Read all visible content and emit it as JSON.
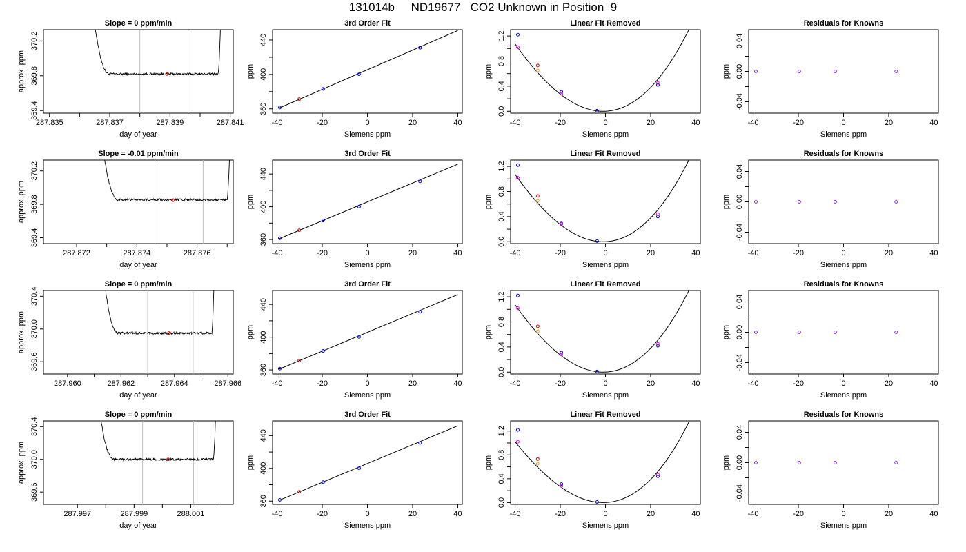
{
  "figure": {
    "title": "131014b     ND19677   CO2 Unknown in Position  9"
  },
  "colors": {
    "trace": "#000000",
    "vline": "#bebebe",
    "known": "#0000ff",
    "unknown": "#ff0000",
    "magenta": "#ff00ff",
    "orange": "#ffa500",
    "residual": "#8a2be2"
  },
  "chart_data": [
    {
      "type": "line",
      "title": "Slope =  0  ppm/min",
      "xlabel": "day of year",
      "ylabel": "approx. ppm",
      "xlim": [
        287.8348,
        287.8411
      ],
      "ylim": [
        369.37,
        370.33
      ],
      "xticks": [
        287.835,
        287.837,
        287.839,
        287.841
      ],
      "xtick_labels": [
        "287.835",
        "287.837",
        "287.839",
        "287.841"
      ],
      "xticks_minor": [
        287.836,
        287.838,
        287.84
      ],
      "yticks": [
        369.4,
        369.8,
        370.2
      ],
      "ytick_labels": [
        "369.4",
        "369.8",
        "370.2"
      ],
      "trace": {
        "x0": 287.8364,
        "x1": 287.8407,
        "steady_start": 287.837,
        "steady_end": 287.8406,
        "level": 369.82,
        "noise": 0.012
      },
      "vlines": [
        287.838,
        287.8396
      ],
      "marker": {
        "x": 287.8389,
        "y": 369.82
      }
    },
    {
      "type": "line",
      "title": "Slope =  -0.01  ppm/min",
      "xlabel": "day of year",
      "ylabel": "approx. ppm",
      "xlim": [
        287.8709,
        287.8772
      ],
      "ylim": [
        369.33,
        370.33
      ],
      "xticks": [
        287.872,
        287.874,
        287.876
      ],
      "xtick_labels": [
        "287.872",
        "287.874",
        "287.876"
      ],
      "xticks_minor": [
        287.873,
        287.875,
        287.877
      ],
      "yticks": [
        369.4,
        369.8,
        370.2
      ],
      "ytick_labels": [
        "369.4",
        "369.8",
        "370.2"
      ],
      "trace": {
        "x0": 287.8728,
        "x1": 287.8771,
        "steady_start": 287.8734,
        "steady_end": 287.877,
        "level": 369.855,
        "noise": 0.013
      },
      "vlines": [
        287.8746,
        287.8762
      ],
      "marker": {
        "x": 287.8752,
        "y": 369.85
      }
    },
    {
      "type": "line",
      "title": "Slope =  0  ppm/min",
      "xlabel": "day of year",
      "ylabel": "approx. ppm",
      "xlim": [
        287.9591,
        287.9662
      ],
      "ylim": [
        369.45,
        370.47
      ],
      "xticks": [
        287.96,
        287.962,
        287.964,
        287.966
      ],
      "xtick_labels": [
        "287.960",
        "287.962",
        "287.964",
        "287.966"
      ],
      "xticks_minor": [
        287.961,
        287.963,
        287.965
      ],
      "yticks": [
        369.6,
        370.0,
        370.4
      ],
      "ytick_labels": [
        "369.6",
        "370.0",
        "370.4"
      ],
      "trace": {
        "x0": 287.9613,
        "x1": 287.9655,
        "steady_start": 287.9619,
        "steady_end": 287.9654,
        "level": 369.95,
        "noise": 0.013
      },
      "vlines": [
        287.963,
        287.9647
      ],
      "marker": {
        "x": 287.9638,
        "y": 369.95
      }
    },
    {
      "type": "line",
      "title": "Slope =  0  ppm/min",
      "xlabel": "day of year",
      "ylabel": "approx. ppm",
      "xlim": [
        287.9958,
        288.0025
      ],
      "ylim": [
        369.45,
        370.47
      ],
      "xticks": [
        287.997,
        287.999,
        288.001
      ],
      "xtick_labels": [
        "287.997",
        "287.999",
        "288.001"
      ],
      "xticks_minor": [
        287.998,
        288.0,
        288.002
      ],
      "yticks": [
        369.6,
        370.0,
        370.4
      ],
      "ytick_labels": [
        "369.6",
        "370.0",
        "370.4"
      ],
      "trace": {
        "x0": 287.9977,
        "x1": 288.0019,
        "steady_start": 287.9983,
        "steady_end": 288.0018,
        "level": 370.0,
        "noise": 0.013
      },
      "vlines": [
        287.9993,
        288.0011
      ],
      "marker": {
        "x": 288.0002,
        "y": 370.0
      }
    },
    {
      "type": "scatter",
      "title": "3rd Order Fit",
      "xlabel": "Siemens ppm",
      "ylabel": "ppm",
      "xlim": [
        -42,
        42
      ],
      "ylim": [
        355,
        452
      ],
      "xticks": [
        -40,
        -20,
        0,
        20,
        40
      ],
      "xtick_labels": [
        "-40",
        "-20",
        "0",
        "20",
        "40"
      ],
      "yticks": [
        360,
        400,
        440
      ],
      "ytick_labels": [
        "360",
        "400",
        "440"
      ],
      "yticks_minor": [
        380,
        420
      ],
      "line": {
        "x": [
          -39,
          40
        ],
        "y": [
          361,
          451
        ]
      },
      "points": [
        {
          "x": -38.8,
          "y": 361.5,
          "c": "known"
        },
        {
          "x": -30.2,
          "y": 371.3,
          "c": "unknown"
        },
        {
          "x": -19.6,
          "y": 383.2,
          "c": "known"
        },
        {
          "x": -3.7,
          "y": 400.2,
          "c": "known"
        },
        {
          "x": 23.3,
          "y": 431.0,
          "c": "known"
        }
      ]
    },
    {
      "type": "scatter",
      "title": "3rd Order Fit",
      "xlabel": "Siemens ppm",
      "ylabel": "ppm",
      "xlim": [
        -42,
        42
      ],
      "ylim": [
        355,
        457
      ],
      "xticks": [
        -40,
        -20,
        0,
        20,
        40
      ],
      "xtick_labels": [
        "-40",
        "-20",
        "0",
        "20",
        "40"
      ],
      "yticks": [
        360,
        400,
        440
      ],
      "ytick_labels": [
        "360",
        "400",
        "440"
      ],
      "yticks_minor": [
        380,
        420
      ],
      "line": {
        "x": [
          -39,
          40
        ],
        "y": [
          361,
          452
        ]
      },
      "points": [
        {
          "x": -38.8,
          "y": 361.5,
          "c": "known"
        },
        {
          "x": -30.2,
          "y": 371.3,
          "c": "unknown"
        },
        {
          "x": -19.6,
          "y": 383.2,
          "c": "known"
        },
        {
          "x": -3.7,
          "y": 400.2,
          "c": "known"
        },
        {
          "x": 23.3,
          "y": 431.0,
          "c": "known"
        }
      ]
    },
    {
      "type": "scatter",
      "title": "3rd Order Fit",
      "xlabel": "Siemens ppm",
      "ylabel": "ppm",
      "xlim": [
        -42,
        42
      ],
      "ylim": [
        355,
        457
      ],
      "xticks": [
        -40,
        -20,
        0,
        20,
        40
      ],
      "xtick_labels": [
        "-40",
        "-20",
        "0",
        "20",
        "40"
      ],
      "yticks": [
        360,
        400,
        440
      ],
      "ytick_labels": [
        "360",
        "400",
        "440"
      ],
      "yticks_minor": [
        380,
        420
      ],
      "line": {
        "x": [
          -39,
          40
        ],
        "y": [
          361,
          452
        ]
      },
      "points": [
        {
          "x": -38.8,
          "y": 361.5,
          "c": "known"
        },
        {
          "x": -30.2,
          "y": 371.3,
          "c": "unknown"
        },
        {
          "x": -19.6,
          "y": 383.2,
          "c": "known"
        },
        {
          "x": -3.7,
          "y": 400.2,
          "c": "known"
        },
        {
          "x": 23.3,
          "y": 431.0,
          "c": "known"
        }
      ]
    },
    {
      "type": "scatter",
      "title": "3rd Order Fit",
      "xlabel": "Siemens ppm",
      "ylabel": "ppm",
      "xlim": [
        -42,
        42
      ],
      "ylim": [
        356,
        458
      ],
      "xticks": [
        -40,
        -20,
        0,
        20,
        40
      ],
      "xtick_labels": [
        "-40",
        "-20",
        "0",
        "20",
        "40"
      ],
      "yticks": [
        360,
        400,
        440
      ],
      "ytick_labels": [
        "360",
        "400",
        "440"
      ],
      "yticks_minor": [
        380,
        420
      ],
      "line": {
        "x": [
          -39,
          40
        ],
        "y": [
          361,
          452
        ]
      },
      "points": [
        {
          "x": -38.8,
          "y": 361.5,
          "c": "known"
        },
        {
          "x": -30.2,
          "y": 371.3,
          "c": "unknown"
        },
        {
          "x": -19.6,
          "y": 383.2,
          "c": "known"
        },
        {
          "x": -3.7,
          "y": 400.2,
          "c": "known"
        },
        {
          "x": 23.3,
          "y": 431.0,
          "c": "known"
        }
      ]
    },
    {
      "type": "scatter",
      "title": "Linear Fit Removed",
      "xlabel": "Siemens ppm",
      "ylabel": "ppm",
      "xlim": [
        -42,
        42
      ],
      "ylim": [
        -0.03,
        1.3
      ],
      "xticks": [
        -40,
        -20,
        0,
        20,
        40
      ],
      "xtick_labels": [
        "-40",
        "-20",
        "0",
        "20",
        "40"
      ],
      "yticks": [
        0,
        0.4,
        0.8,
        1.2
      ],
      "ytick_labels": [
        "0.0",
        "0.4",
        "0.8",
        "1.2"
      ],
      "yticks_minor": [
        0.2,
        0.6,
        1.0
      ],
      "curve": {
        "vertex": -1,
        "a": 0.000807,
        "b": 2.6e-06
      },
      "points": [
        {
          "x": -38.8,
          "y": 1.22,
          "c": "known"
        },
        {
          "x": -38.8,
          "y": 1.02,
          "c": "magenta"
        },
        {
          "x": -30.0,
          "y": 0.73,
          "c": "unknown"
        },
        {
          "x": -30.0,
          "y": 0.65,
          "c": "orange"
        },
        {
          "x": -19.5,
          "y": 0.31,
          "c": "known"
        },
        {
          "x": -19.5,
          "y": 0.28,
          "c": "magenta"
        },
        {
          "x": -3.7,
          "y": 0.01,
          "c": "known"
        },
        {
          "x": 23.2,
          "y": 0.42,
          "c": "known"
        },
        {
          "x": 23.2,
          "y": 0.45,
          "c": "magenta"
        }
      ]
    },
    {
      "type": "scatter",
      "title": "Linear Fit Removed",
      "xlabel": "Siemens ppm",
      "ylabel": "ppm",
      "xlim": [
        -42,
        42
      ],
      "ylim": [
        -0.03,
        1.3
      ],
      "xticks": [
        -40,
        -20,
        0,
        20,
        40
      ],
      "xtick_labels": [
        "-40",
        "-20",
        "0",
        "20",
        "40"
      ],
      "yticks": [
        0,
        0.4,
        0.8,
        1.2
      ],
      "ytick_labels": [
        "0.0",
        "0.4",
        "0.8",
        "1.2"
      ],
      "yticks_minor": [
        0.2,
        0.6,
        1.0
      ],
      "curve": {
        "vertex": -1,
        "a": 0.000807,
        "b": 2.6e-06
      },
      "points": [
        {
          "x": -38.8,
          "y": 1.22,
          "c": "known"
        },
        {
          "x": -38.8,
          "y": 1.02,
          "c": "magenta"
        },
        {
          "x": -30.0,
          "y": 0.73,
          "c": "unknown"
        },
        {
          "x": -30.0,
          "y": 0.65,
          "c": "orange"
        },
        {
          "x": -19.5,
          "y": 0.29,
          "c": "known"
        },
        {
          "x": -19.5,
          "y": 0.28,
          "c": "magenta"
        },
        {
          "x": -3.7,
          "y": 0.01,
          "c": "known"
        },
        {
          "x": 23.2,
          "y": 0.4,
          "c": "known"
        },
        {
          "x": 23.2,
          "y": 0.44,
          "c": "magenta"
        }
      ]
    },
    {
      "type": "scatter",
      "title": "Linear Fit Removed",
      "xlabel": "Siemens ppm",
      "ylabel": "ppm",
      "xlim": [
        -42,
        42
      ],
      "ylim": [
        -0.03,
        1.3
      ],
      "xticks": [
        -40,
        -20,
        0,
        20,
        40
      ],
      "xtick_labels": [
        "-40",
        "-20",
        "0",
        "20",
        "40"
      ],
      "yticks": [
        0,
        0.4,
        0.8,
        1.2
      ],
      "ytick_labels": [
        "0.0",
        "0.4",
        "0.8",
        "1.2"
      ],
      "yticks_minor": [
        0.2,
        0.6,
        1.0
      ],
      "curve": {
        "vertex": -1,
        "a": 0.000807,
        "b": 2.6e-06
      },
      "points": [
        {
          "x": -38.8,
          "y": 1.22,
          "c": "known"
        },
        {
          "x": -38.8,
          "y": 1.02,
          "c": "magenta"
        },
        {
          "x": -30.0,
          "y": 0.73,
          "c": "unknown"
        },
        {
          "x": -30.0,
          "y": 0.65,
          "c": "orange"
        },
        {
          "x": -19.5,
          "y": 0.31,
          "c": "known"
        },
        {
          "x": -19.5,
          "y": 0.28,
          "c": "magenta"
        },
        {
          "x": -3.7,
          "y": 0.01,
          "c": "known"
        },
        {
          "x": 23.2,
          "y": 0.42,
          "c": "known"
        },
        {
          "x": 23.2,
          "y": 0.45,
          "c": "magenta"
        }
      ]
    },
    {
      "type": "scatter",
      "title": "Linear Fit Removed",
      "xlabel": "Siemens ppm",
      "ylabel": "ppm",
      "xlim": [
        -42,
        42
      ],
      "ylim": [
        -0.03,
        1.37
      ],
      "xticks": [
        -40,
        -20,
        0,
        20,
        40
      ],
      "xtick_labels": [
        "-40",
        "-20",
        "0",
        "20",
        "40"
      ],
      "yticks": [
        0,
        0.4,
        0.8,
        1.2
      ],
      "ytick_labels": [
        "0.0",
        "0.4",
        "0.8",
        "1.2"
      ],
      "yticks_minor": [
        0.2,
        0.6,
        1.0
      ],
      "curve": {
        "vertex": -1,
        "a": 0.000807,
        "b": 3.5e-06
      },
      "points": [
        {
          "x": -38.8,
          "y": 1.22,
          "c": "known"
        },
        {
          "x": -38.8,
          "y": 1.02,
          "c": "magenta"
        },
        {
          "x": -30.0,
          "y": 0.73,
          "c": "unknown"
        },
        {
          "x": -30.0,
          "y": 0.65,
          "c": "orange"
        },
        {
          "x": -19.5,
          "y": 0.31,
          "c": "known"
        },
        {
          "x": -19.5,
          "y": 0.28,
          "c": "magenta"
        },
        {
          "x": -3.7,
          "y": 0.01,
          "c": "known"
        },
        {
          "x": 23.2,
          "y": 0.44,
          "c": "known"
        },
        {
          "x": 23.2,
          "y": 0.47,
          "c": "magenta"
        }
      ]
    },
    {
      "type": "scatter",
      "title": "Residuals for Knowns",
      "xlabel": "Siemens ppm",
      "ylabel": "ppm",
      "xlim": [
        -42,
        42
      ],
      "ylim": [
        -0.055,
        0.055
      ],
      "xticks": [
        -40,
        -20,
        0,
        20,
        40
      ],
      "xtick_labels": [
        "-40",
        "-20",
        "0",
        "20",
        "40"
      ],
      "yticks": [
        -0.04,
        0,
        0.04
      ],
      "ytick_labels": [
        "-0.04",
        "0.00",
        "0.04"
      ],
      "yticks_minor": [
        -0.02,
        0.02
      ],
      "points": [
        {
          "x": -38.8,
          "y": 0,
          "c": "residual"
        },
        {
          "x": -19.6,
          "y": 0,
          "c": "residual"
        },
        {
          "x": -3.7,
          "y": 0,
          "c": "residual"
        },
        {
          "x": 23.3,
          "y": 0,
          "c": "residual"
        }
      ]
    },
    {
      "type": "scatter",
      "title": "Residuals for Knowns",
      "xlabel": "Siemens ppm",
      "ylabel": "ppm",
      "xlim": [
        -42,
        42
      ],
      "ylim": [
        -0.055,
        0.055
      ],
      "xticks": [
        -40,
        -20,
        0,
        20,
        40
      ],
      "xtick_labels": [
        "-40",
        "-20",
        "0",
        "20",
        "40"
      ],
      "yticks": [
        -0.04,
        0,
        0.04
      ],
      "ytick_labels": [
        "-0.04",
        "0.00",
        "0.04"
      ],
      "yticks_minor": [
        -0.02,
        0.02
      ],
      "points": [
        {
          "x": -38.8,
          "y": 0,
          "c": "residual"
        },
        {
          "x": -19.6,
          "y": 0,
          "c": "residual"
        },
        {
          "x": -3.7,
          "y": 0,
          "c": "residual"
        },
        {
          "x": 23.3,
          "y": 0,
          "c": "residual"
        }
      ]
    },
    {
      "type": "scatter",
      "title": "Residuals for Knowns",
      "xlabel": "Siemens ppm",
      "ylabel": "ppm",
      "xlim": [
        -42,
        42
      ],
      "ylim": [
        -0.055,
        0.055
      ],
      "xticks": [
        -40,
        -20,
        0,
        20,
        40
      ],
      "xtick_labels": [
        "-40",
        "-20",
        "0",
        "20",
        "40"
      ],
      "yticks": [
        -0.04,
        0,
        0.04
      ],
      "ytick_labels": [
        "-0.04",
        "0.00",
        "0.04"
      ],
      "yticks_minor": [
        -0.02,
        0.02
      ],
      "points": [
        {
          "x": -38.8,
          "y": 0,
          "c": "residual"
        },
        {
          "x": -19.6,
          "y": 0,
          "c": "residual"
        },
        {
          "x": -3.7,
          "y": 0,
          "c": "residual"
        },
        {
          "x": 23.3,
          "y": 0,
          "c": "residual"
        }
      ]
    },
    {
      "type": "scatter",
      "title": "Residuals for Knowns",
      "xlabel": "Siemens ppm",
      "ylabel": "ppm",
      "xlim": [
        -42,
        42
      ],
      "ylim": [
        -0.055,
        0.055
      ],
      "xticks": [
        -40,
        -20,
        0,
        20,
        40
      ],
      "xtick_labels": [
        "-40",
        "-20",
        "0",
        "20",
        "40"
      ],
      "yticks": [
        -0.04,
        0,
        0.04
      ],
      "ytick_labels": [
        "-0.04",
        "0.00",
        "0.04"
      ],
      "yticks_minor": [
        -0.02,
        0.02
      ],
      "points": [
        {
          "x": -38.8,
          "y": 0,
          "c": "residual"
        },
        {
          "x": -19.6,
          "y": 0,
          "c": "residual"
        },
        {
          "x": -3.7,
          "y": 0,
          "c": "residual"
        },
        {
          "x": 23.3,
          "y": 0,
          "c": "residual"
        }
      ]
    }
  ]
}
